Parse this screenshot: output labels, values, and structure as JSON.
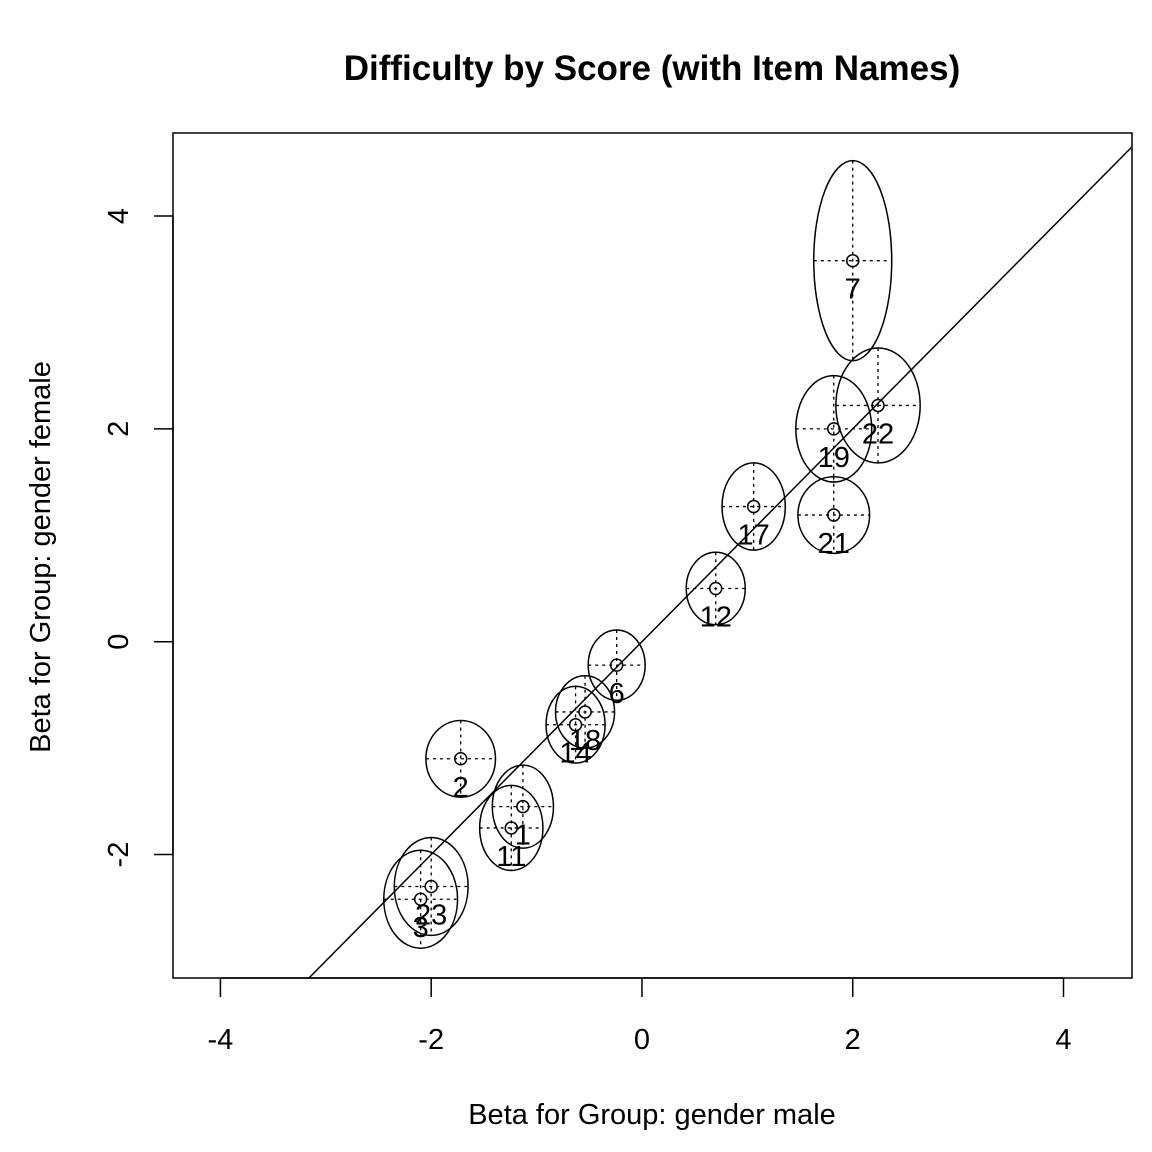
{
  "chart_data": {
    "type": "scatter",
    "title": "Difficulty by Score (with Item Names)",
    "xlabel": "Beta for Group: gender male",
    "ylabel": "Beta for Group: gender female",
    "xlim": [
      -4.45,
      4.65
    ],
    "ylim": [
      -3.16,
      4.78
    ],
    "x_ticks": [
      -4,
      -2,
      0,
      2,
      4
    ],
    "y_ticks": [
      -2,
      0,
      2,
      4
    ],
    "grid": false,
    "reference_line": {
      "type": "identity",
      "slope": 1,
      "intercept": 0
    },
    "points": [
      {
        "label": "7",
        "x": 2.0,
        "y": 3.58,
        "ex": 0.37,
        "ey": 0.94
      },
      {
        "label": "22",
        "x": 2.24,
        "y": 2.22,
        "ex": 0.4,
        "ey": 0.54
      },
      {
        "label": "19",
        "x": 1.82,
        "y": 2.0,
        "ex": 0.36,
        "ey": 0.5
      },
      {
        "label": "21",
        "x": 1.82,
        "y": 1.19,
        "ex": 0.34,
        "ey": 0.36
      },
      {
        "label": "17",
        "x": 1.06,
        "y": 1.27,
        "ex": 0.3,
        "ey": 0.41
      },
      {
        "label": "12",
        "x": 0.7,
        "y": 0.5,
        "ex": 0.28,
        "ey": 0.34
      },
      {
        "label": "6",
        "x": -0.24,
        "y": -0.22,
        "ex": 0.27,
        "ey": 0.33
      },
      {
        "label": "18",
        "x": -0.54,
        "y": -0.66,
        "ex": 0.28,
        "ey": 0.34
      },
      {
        "label": "14",
        "x": -0.63,
        "y": -0.78,
        "ex": 0.28,
        "ey": 0.36
      },
      {
        "label": "2",
        "x": -1.72,
        "y": -1.1,
        "ex": 0.33,
        "ey": 0.36
      },
      {
        "label": "1",
        "x": -1.13,
        "y": -1.55,
        "ex": 0.29,
        "ey": 0.39
      },
      {
        "label": "11",
        "x": -1.24,
        "y": -1.75,
        "ex": 0.3,
        "ey": 0.4
      },
      {
        "label": "23",
        "x": -2.0,
        "y": -2.3,
        "ex": 0.35,
        "ey": 0.46
      },
      {
        "label": "3",
        "x": -2.1,
        "y": -2.42,
        "ex": 0.35,
        "ey": 0.46
      }
    ]
  }
}
